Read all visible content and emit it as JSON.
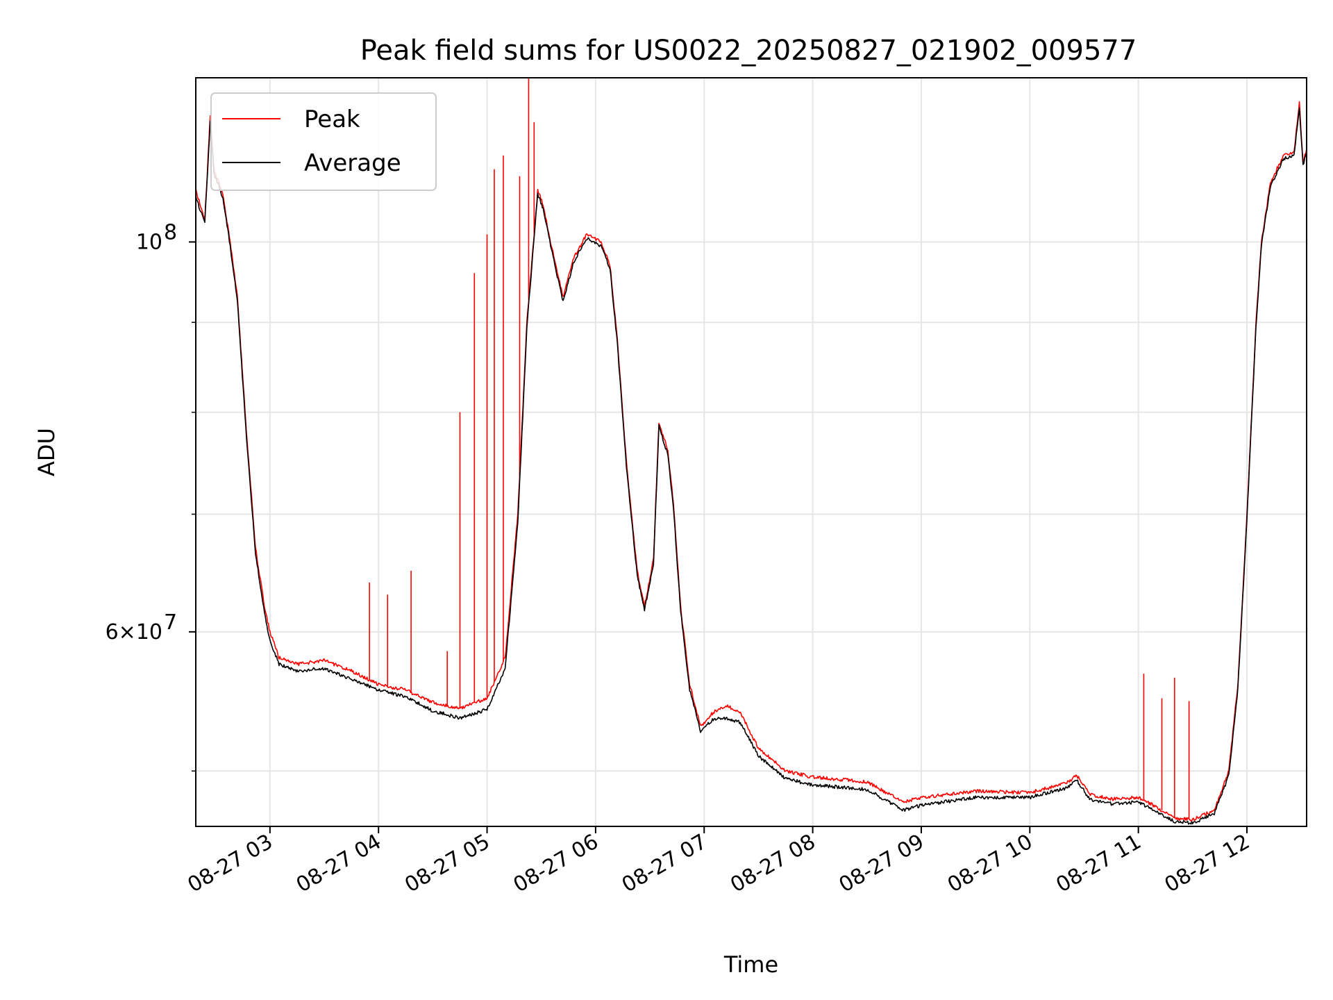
{
  "chart_data": {
    "type": "line",
    "title": "Peak field sums for US0022_20250827_021902_009577",
    "xlabel": "Time",
    "ylabel": "ADU",
    "yscale": "log",
    "ylim": [
      46500000,
      124000000
    ],
    "xlim": [
      "2025-08-27 02:19",
      "2025-08-27 12:33"
    ],
    "grid": true,
    "legend_position": "top-left",
    "x_ticks": [
      "08-27 03",
      "08-27 04",
      "08-27 05",
      "08-27 06",
      "08-27 07",
      "08-27 08",
      "08-27 09",
      "08-27 10",
      "08-27 11",
      "08-27 12"
    ],
    "y_ticks": [
      {
        "value": 100000000,
        "label_base": "10",
        "label_exp": "8"
      },
      {
        "value": 60000000,
        "label_base": "6×10",
        "label_exp": "7"
      }
    ],
    "y_minor_ticks": [
      50000000,
      70000000,
      80000000,
      90000000
    ],
    "series": [
      {
        "name": "Peak",
        "color": "#ff0000",
        "points": [
          [
            "2025-08-27 02:19",
            107000000
          ],
          [
            "2025-08-27 02:24",
            103000000
          ],
          [
            "2025-08-27 02:27",
            118000000
          ],
          [
            "2025-08-27 02:29",
            110000000
          ],
          [
            "2025-08-27 02:34",
            106500000
          ],
          [
            "2025-08-27 02:38",
            100000000
          ],
          [
            "2025-08-27 02:42",
            93000000
          ],
          [
            "2025-08-27 02:47",
            78000000
          ],
          [
            "2025-08-27 02:52",
            67000000
          ],
          [
            "2025-08-27 02:57",
            62000000
          ],
          [
            "2025-08-27 03:00",
            60000000
          ],
          [
            "2025-08-27 03:05",
            58000000
          ],
          [
            "2025-08-27 03:15",
            57500000
          ],
          [
            "2025-08-27 03:30",
            57800000
          ],
          [
            "2025-08-27 03:45",
            57000000
          ],
          [
            "2025-08-27 04:00",
            56000000
          ],
          [
            "2025-08-27 04:15",
            55600000
          ],
          [
            "2025-08-27 04:30",
            54700000
          ],
          [
            "2025-08-27 04:45",
            54300000
          ],
          [
            "2025-08-27 05:00",
            55000000
          ],
          [
            "2025-08-27 05:10",
            58000000
          ],
          [
            "2025-08-27 05:17",
            70000000
          ],
          [
            "2025-08-27 05:22",
            90000000
          ],
          [
            "2025-08-27 05:28",
            107000000
          ],
          [
            "2025-08-27 05:31",
            105000000
          ],
          [
            "2025-08-27 05:36",
            99000000
          ],
          [
            "2025-08-27 05:42",
            93000000
          ],
          [
            "2025-08-27 05:48",
            98000000
          ],
          [
            "2025-08-27 05:55",
            101000000
          ],
          [
            "2025-08-27 06:03",
            100000000
          ],
          [
            "2025-08-27 06:08",
            97000000
          ],
          [
            "2025-08-27 06:12",
            88000000
          ],
          [
            "2025-08-27 06:17",
            75000000
          ],
          [
            "2025-08-27 06:23",
            65000000
          ],
          [
            "2025-08-27 06:27",
            62000000
          ],
          [
            "2025-08-27 06:32",
            66000000
          ],
          [
            "2025-08-27 06:35",
            79000000
          ],
          [
            "2025-08-27 06:40",
            76000000
          ],
          [
            "2025-08-27 06:43",
            71000000
          ],
          [
            "2025-08-27 06:47",
            62000000
          ],
          [
            "2025-08-27 06:52",
            56000000
          ],
          [
            "2025-08-27 06:58",
            53000000
          ],
          [
            "2025-08-27 07:05",
            54000000
          ],
          [
            "2025-08-27 07:12",
            54500000
          ],
          [
            "2025-08-27 07:20",
            54000000
          ],
          [
            "2025-08-27 07:30",
            51500000
          ],
          [
            "2025-08-27 07:45",
            50000000
          ],
          [
            "2025-08-27 08:00",
            49600000
          ],
          [
            "2025-08-27 08:30",
            49300000
          ],
          [
            "2025-08-27 08:50",
            48000000
          ],
          [
            "2025-08-27 09:00",
            48300000
          ],
          [
            "2025-08-27 09:30",
            48700000
          ],
          [
            "2025-08-27 10:00",
            48600000
          ],
          [
            "2025-08-27 10:20",
            49200000
          ],
          [
            "2025-08-27 10:26",
            49700000
          ],
          [
            "2025-08-27 10:33",
            48500000
          ],
          [
            "2025-08-27 10:45",
            48200000
          ],
          [
            "2025-08-27 11:00",
            48300000
          ],
          [
            "2025-08-27 11:10",
            47700000
          ],
          [
            "2025-08-27 11:20",
            47000000
          ],
          [
            "2025-08-27 11:30",
            46900000
          ],
          [
            "2025-08-27 11:42",
            47500000
          ],
          [
            "2025-08-27 11:50",
            50000000
          ],
          [
            "2025-08-27 11:55",
            56000000
          ],
          [
            "2025-08-27 12:00",
            70000000
          ],
          [
            "2025-08-27 12:05",
            90000000
          ],
          [
            "2025-08-27 12:08",
            100000000
          ],
          [
            "2025-08-27 12:13",
            108000000
          ],
          [
            "2025-08-27 12:20",
            112000000
          ],
          [
            "2025-08-27 12:26",
            112500000
          ],
          [
            "2025-08-27 12:29",
            120000000
          ],
          [
            "2025-08-27 12:31",
            111000000
          ],
          [
            "2025-08-27 12:33",
            113000000
          ]
        ],
        "spikes": [
          [
            "2025-08-27 03:55",
            64000000
          ],
          [
            "2025-08-27 04:05",
            63000000
          ],
          [
            "2025-08-27 04:18",
            65000000
          ],
          [
            "2025-08-27 04:38",
            58500000
          ],
          [
            "2025-08-27 04:45",
            80000000
          ],
          [
            "2025-08-27 04:53",
            96000000
          ],
          [
            "2025-08-27 05:00",
            101000000
          ],
          [
            "2025-08-27 05:04",
            110000000
          ],
          [
            "2025-08-27 05:09",
            112000000
          ],
          [
            "2025-08-27 05:18",
            109000000
          ],
          [
            "2025-08-27 05:23",
            124000000
          ],
          [
            "2025-08-27 05:26",
            117000000
          ],
          [
            "2025-08-27 11:03",
            56800000
          ],
          [
            "2025-08-27 11:13",
            55000000
          ],
          [
            "2025-08-27 11:20",
            56500000
          ],
          [
            "2025-08-27 11:28",
            54800000
          ]
        ]
      },
      {
        "name": "Average",
        "color": "#000000",
        "points": [
          [
            "2025-08-27 02:19",
            106000000
          ],
          [
            "2025-08-27 02:24",
            102500000
          ],
          [
            "2025-08-27 02:27",
            117000000
          ],
          [
            "2025-08-27 02:29",
            109500000
          ],
          [
            "2025-08-27 02:34",
            106000000
          ],
          [
            "2025-08-27 02:38",
            99500000
          ],
          [
            "2025-08-27 02:42",
            92500000
          ],
          [
            "2025-08-27 02:47",
            77500000
          ],
          [
            "2025-08-27 02:52",
            66500000
          ],
          [
            "2025-08-27 02:57",
            61500000
          ],
          [
            "2025-08-27 03:00",
            59300000
          ],
          [
            "2025-08-27 03:05",
            57500000
          ],
          [
            "2025-08-27 03:15",
            57000000
          ],
          [
            "2025-08-27 03:30",
            57200000
          ],
          [
            "2025-08-27 03:45",
            56400000
          ],
          [
            "2025-08-27 04:00",
            55600000
          ],
          [
            "2025-08-27 04:15",
            55100000
          ],
          [
            "2025-08-27 04:30",
            54100000
          ],
          [
            "2025-08-27 04:45",
            53600000
          ],
          [
            "2025-08-27 05:00",
            54200000
          ],
          [
            "2025-08-27 05:10",
            57200000
          ],
          [
            "2025-08-27 05:17",
            69200000
          ],
          [
            "2025-08-27 05:22",
            89500000
          ],
          [
            "2025-08-27 05:28",
            106500000
          ],
          [
            "2025-08-27 05:31",
            104500000
          ],
          [
            "2025-08-27 05:36",
            98500000
          ],
          [
            "2025-08-27 05:42",
            92500000
          ],
          [
            "2025-08-27 05:48",
            97500000
          ],
          [
            "2025-08-27 05:55",
            100500000
          ],
          [
            "2025-08-27 06:03",
            99500000
          ],
          [
            "2025-08-27 06:08",
            96500000
          ],
          [
            "2025-08-27 06:12",
            87500000
          ],
          [
            "2025-08-27 06:17",
            74500000
          ],
          [
            "2025-08-27 06:23",
            64600000
          ],
          [
            "2025-08-27 06:27",
            61700000
          ],
          [
            "2025-08-27 06:32",
            65600000
          ],
          [
            "2025-08-27 06:35",
            78600000
          ],
          [
            "2025-08-27 06:40",
            75600000
          ],
          [
            "2025-08-27 06:43",
            70600000
          ],
          [
            "2025-08-27 06:47",
            61600000
          ],
          [
            "2025-08-27 06:52",
            55600000
          ],
          [
            "2025-08-27 06:58",
            52700000
          ],
          [
            "2025-08-27 07:05",
            53500000
          ],
          [
            "2025-08-27 07:12",
            53600000
          ],
          [
            "2025-08-27 07:20",
            53300000
          ],
          [
            "2025-08-27 07:30",
            51000000
          ],
          [
            "2025-08-27 07:45",
            49500000
          ],
          [
            "2025-08-27 08:00",
            49100000
          ],
          [
            "2025-08-27 08:30",
            48800000
          ],
          [
            "2025-08-27 08:50",
            47500000
          ],
          [
            "2025-08-27 09:00",
            47800000
          ],
          [
            "2025-08-27 09:30",
            48300000
          ],
          [
            "2025-08-27 10:00",
            48300000
          ],
          [
            "2025-08-27 10:20",
            48900000
          ],
          [
            "2025-08-27 10:26",
            49400000
          ],
          [
            "2025-08-27 10:33",
            48200000
          ],
          [
            "2025-08-27 10:45",
            47900000
          ],
          [
            "2025-08-27 11:00",
            48000000
          ],
          [
            "2025-08-27 11:10",
            47400000
          ],
          [
            "2025-08-27 11:20",
            46800000
          ],
          [
            "2025-08-27 11:30",
            46700000
          ],
          [
            "2025-08-27 11:42",
            47300000
          ],
          [
            "2025-08-27 11:50",
            49700000
          ],
          [
            "2025-08-27 11:55",
            55700000
          ],
          [
            "2025-08-27 12:00",
            69500000
          ],
          [
            "2025-08-27 12:05",
            89500000
          ],
          [
            "2025-08-27 12:08",
            99500000
          ],
          [
            "2025-08-27 12:13",
            107500000
          ],
          [
            "2025-08-27 12:20",
            111500000
          ],
          [
            "2025-08-27 12:26",
            112000000
          ],
          [
            "2025-08-27 12:29",
            119000000
          ],
          [
            "2025-08-27 12:31",
            110500000
          ],
          [
            "2025-08-27 12:33",
            112500000
          ]
        ]
      }
    ]
  }
}
